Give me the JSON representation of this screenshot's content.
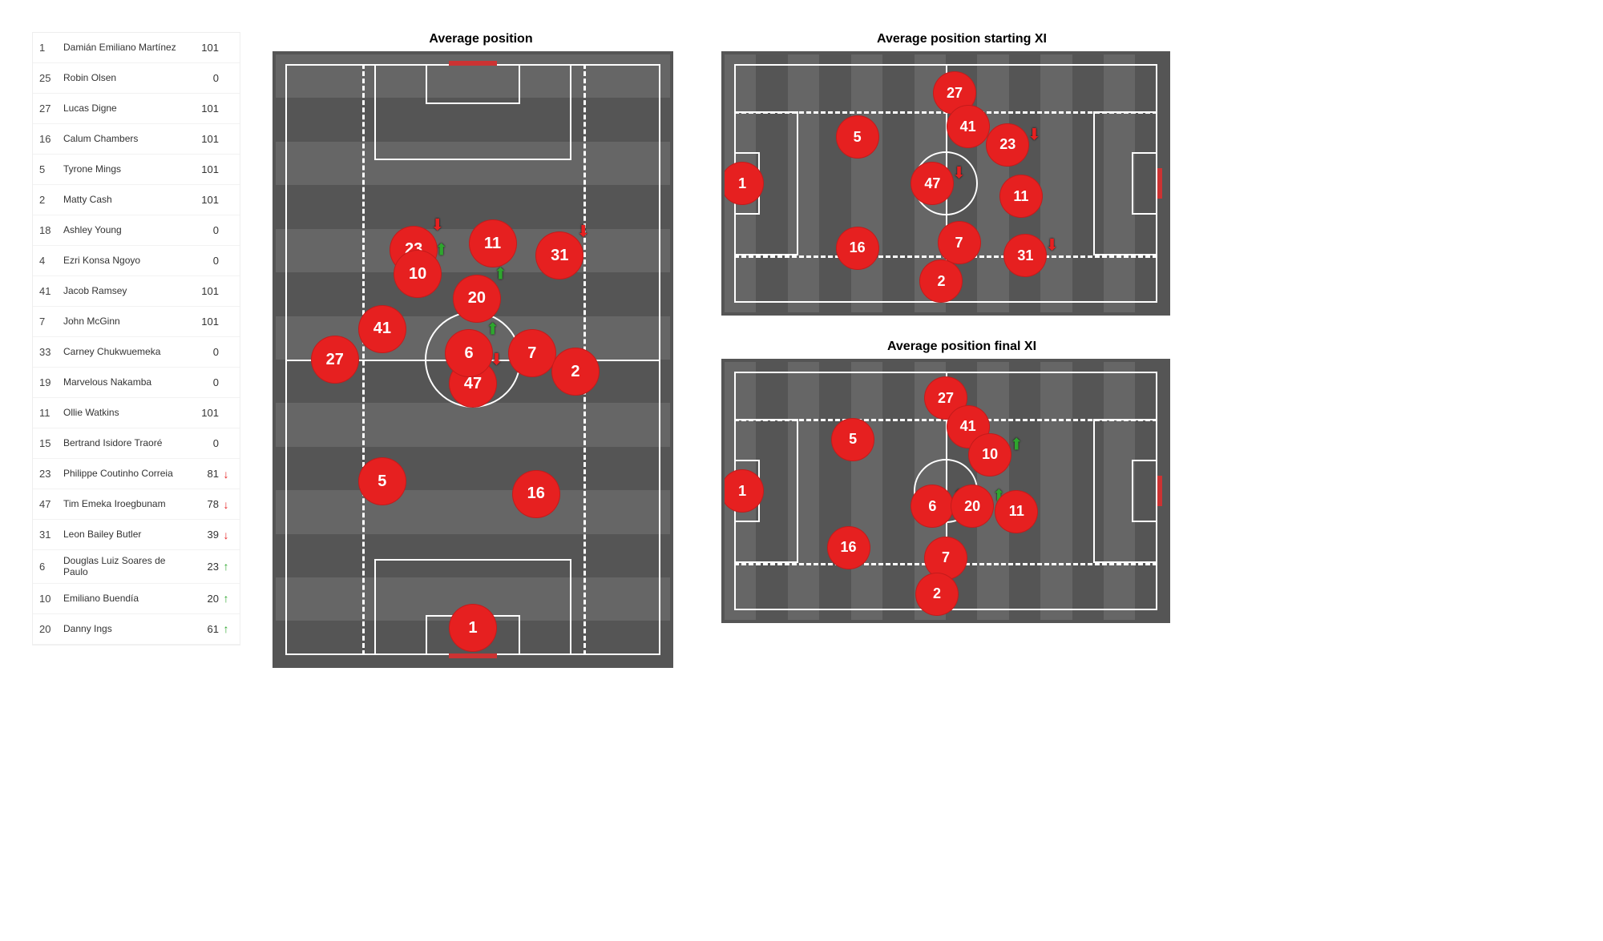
{
  "colors": {
    "bubble_fill": "#e62020",
    "arrow_down": "#e62020",
    "arrow_up": "#2ea62e"
  },
  "table": {
    "rows": [
      {
        "num": "1",
        "name": "Damián Emiliano Martínez",
        "mins": "101",
        "delta": ""
      },
      {
        "num": "25",
        "name": "Robin Olsen",
        "mins": "0",
        "delta": ""
      },
      {
        "num": "27",
        "name": "Lucas Digne",
        "mins": "101",
        "delta": ""
      },
      {
        "num": "16",
        "name": "Calum Chambers",
        "mins": "101",
        "delta": ""
      },
      {
        "num": "5",
        "name": "Tyrone Mings",
        "mins": "101",
        "delta": ""
      },
      {
        "num": "2",
        "name": "Matty Cash",
        "mins": "101",
        "delta": ""
      },
      {
        "num": "18",
        "name": "Ashley  Young",
        "mins": "0",
        "delta": ""
      },
      {
        "num": "4",
        "name": "Ezri Konsa Ngoyo",
        "mins": "0",
        "delta": ""
      },
      {
        "num": "41",
        "name": "Jacob Ramsey",
        "mins": "101",
        "delta": ""
      },
      {
        "num": "7",
        "name": "John McGinn",
        "mins": "101",
        "delta": ""
      },
      {
        "num": "33",
        "name": "Carney Chukwuemeka",
        "mins": "0",
        "delta": ""
      },
      {
        "num": "19",
        "name": "Marvelous Nakamba",
        "mins": "0",
        "delta": ""
      },
      {
        "num": "11",
        "name": "Ollie Watkins",
        "mins": "101",
        "delta": ""
      },
      {
        "num": "15",
        "name": "Bertrand Isidore Traoré",
        "mins": "0",
        "delta": ""
      },
      {
        "num": "23",
        "name": "Philippe Coutinho Correia",
        "mins": "81",
        "delta": "down"
      },
      {
        "num": "47",
        "name": "Tim Emeka Iroegbunam",
        "mins": "78",
        "delta": "down"
      },
      {
        "num": "31",
        "name": "Leon Bailey Butler",
        "mins": "39",
        "delta": "down"
      },
      {
        "num": "6",
        "name": "Douglas Luiz Soares de Paulo",
        "mins": "23",
        "delta": "up"
      },
      {
        "num": "10",
        "name": "Emiliano Buendía",
        "mins": "20",
        "delta": "up"
      },
      {
        "num": "20",
        "name": "Danny Ings",
        "mins": "61",
        "delta": "up"
      }
    ]
  },
  "main_pitch": {
    "title": "Average position",
    "bubbles": [
      {
        "num": "1",
        "x": 50,
        "y": 94
      },
      {
        "num": "5",
        "x": 27,
        "y": 70
      },
      {
        "num": "16",
        "x": 66,
        "y": 72
      },
      {
        "num": "27",
        "x": 15,
        "y": 50
      },
      {
        "num": "41",
        "x": 27,
        "y": 45
      },
      {
        "num": "47",
        "x": 50,
        "y": 54,
        "arrow": "down"
      },
      {
        "num": "6",
        "x": 49,
        "y": 49,
        "arrow": "up"
      },
      {
        "num": "7",
        "x": 65,
        "y": 49
      },
      {
        "num": "2",
        "x": 76,
        "y": 52
      },
      {
        "num": "23",
        "x": 35,
        "y": 32,
        "arrow": "down"
      },
      {
        "num": "10",
        "x": 36,
        "y": 36,
        "arrow": "up"
      },
      {
        "num": "20",
        "x": 51,
        "y": 40,
        "arrow": "up"
      },
      {
        "num": "11",
        "x": 55,
        "y": 31
      },
      {
        "num": "31",
        "x": 72,
        "y": 33,
        "arrow": "down"
      }
    ]
  },
  "start_xi": {
    "title": "Average position starting XI",
    "bubbles": [
      {
        "num": "1",
        "x": 4,
        "y": 50
      },
      {
        "num": "5",
        "x": 30,
        "y": 32
      },
      {
        "num": "16",
        "x": 30,
        "y": 75
      },
      {
        "num": "27",
        "x": 52,
        "y": 15
      },
      {
        "num": "41",
        "x": 55,
        "y": 28
      },
      {
        "num": "47",
        "x": 47,
        "y": 50,
        "arrow": "down"
      },
      {
        "num": "7",
        "x": 53,
        "y": 73
      },
      {
        "num": "2",
        "x": 49,
        "y": 88
      },
      {
        "num": "23",
        "x": 64,
        "y": 35,
        "arrow": "down"
      },
      {
        "num": "11",
        "x": 67,
        "y": 55
      },
      {
        "num": "31",
        "x": 68,
        "y": 78,
        "arrow": "down"
      }
    ]
  },
  "final_xi": {
    "title": "Average position final XI",
    "bubbles": [
      {
        "num": "1",
        "x": 4,
        "y": 50
      },
      {
        "num": "5",
        "x": 29,
        "y": 30
      },
      {
        "num": "16",
        "x": 28,
        "y": 72
      },
      {
        "num": "27",
        "x": 50,
        "y": 14
      },
      {
        "num": "41",
        "x": 55,
        "y": 25
      },
      {
        "num": "10",
        "x": 60,
        "y": 36,
        "arrow": "up"
      },
      {
        "num": "6",
        "x": 47,
        "y": 56,
        "arrow": "up"
      },
      {
        "num": "20",
        "x": 56,
        "y": 56,
        "arrow": "up"
      },
      {
        "num": "11",
        "x": 66,
        "y": 58
      },
      {
        "num": "7",
        "x": 50,
        "y": 76
      },
      {
        "num": "2",
        "x": 48,
        "y": 90
      }
    ]
  }
}
